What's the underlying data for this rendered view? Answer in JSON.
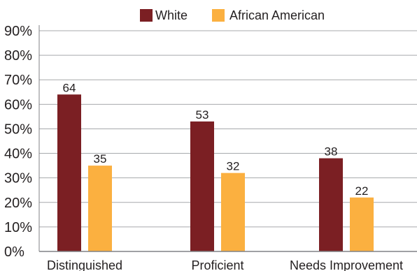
{
  "chart_data": {
    "type": "bar",
    "title": "",
    "xlabel": "",
    "ylabel": "",
    "categories": [
      "Distinguished",
      "Proficient",
      "Needs Improvement"
    ],
    "series": [
      {
        "name": "White",
        "color": "#7b1f23",
        "values": [
          64,
          53,
          38
        ]
      },
      {
        "name": "African American",
        "color": "#fbb040",
        "values": [
          35,
          32,
          22
        ]
      }
    ],
    "ylim": [
      0,
      90
    ],
    "yticks": [
      0,
      10,
      20,
      30,
      40,
      50,
      60,
      70,
      80,
      90
    ],
    "ytick_labels": [
      "0%",
      "10%",
      "20%",
      "30%",
      "40%",
      "50%",
      "60%",
      "70%",
      "80%",
      "90%"
    ],
    "grid": true,
    "legend_position": "top-center",
    "data_labels": true
  }
}
